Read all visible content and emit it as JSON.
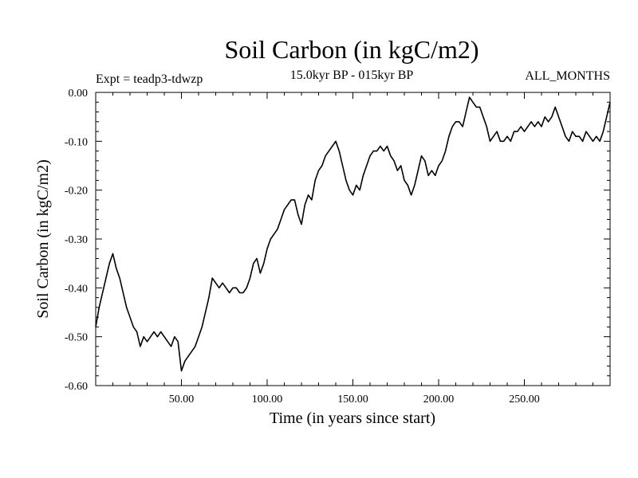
{
  "chart_data": {
    "type": "line",
    "title": "Soil Carbon (in kgC/m2)",
    "subtitle_left": "Expt = teadp3-tdwzp",
    "subtitle_center": "15.0kyr BP - 015kyr BP",
    "subtitle_right": "ALL_MONTHS",
    "xlabel": "Time (in years since start)",
    "ylabel": "Soil Carbon (in kgC/m2)",
    "xlim": [
      0,
      300
    ],
    "ylim": [
      -0.6,
      0.0
    ],
    "x_ticks": [
      50,
      100,
      150,
      200,
      250
    ],
    "x_tick_labels": [
      "50.00",
      "100.00",
      "150.00",
      "200.00",
      "250.00"
    ],
    "y_ticks": [
      0.0,
      -0.1,
      -0.2,
      -0.3,
      -0.4,
      -0.5,
      -0.6
    ],
    "y_tick_labels": [
      "0.00",
      "-0.10",
      "-0.20",
      "-0.30",
      "-0.40",
      "-0.50",
      "-0.60"
    ],
    "series": [
      {
        "name": "Soil Carbon",
        "color": "#000000",
        "x": [
          0,
          2,
          4,
          6,
          8,
          10,
          12,
          14,
          16,
          18,
          20,
          22,
          24,
          26,
          28,
          30,
          32,
          34,
          36,
          38,
          40,
          42,
          44,
          46,
          48,
          50,
          52,
          54,
          56,
          58,
          60,
          62,
          64,
          66,
          68,
          70,
          72,
          74,
          76,
          78,
          80,
          82,
          84,
          86,
          88,
          90,
          92,
          94,
          96,
          98,
          100,
          102,
          104,
          106,
          108,
          110,
          112,
          114,
          116,
          118,
          120,
          122,
          124,
          126,
          128,
          130,
          132,
          134,
          136,
          138,
          140,
          142,
          144,
          146,
          148,
          150,
          152,
          154,
          156,
          158,
          160,
          162,
          164,
          166,
          168,
          170,
          172,
          174,
          176,
          178,
          180,
          182,
          184,
          186,
          188,
          190,
          192,
          194,
          196,
          198,
          200,
          202,
          204,
          206,
          208,
          210,
          212,
          214,
          216,
          218,
          220,
          222,
          224,
          226,
          228,
          230,
          232,
          234,
          236,
          238,
          240,
          242,
          244,
          246,
          248,
          250,
          252,
          254,
          256,
          258,
          260,
          262,
          264,
          266,
          268,
          270,
          272,
          274,
          276,
          278,
          280,
          282,
          284,
          286,
          288,
          290,
          292,
          294,
          296,
          298,
          300
        ],
        "values": [
          -0.48,
          -0.44,
          -0.41,
          -0.38,
          -0.35,
          -0.33,
          -0.36,
          -0.38,
          -0.41,
          -0.44,
          -0.46,
          -0.48,
          -0.49,
          -0.52,
          -0.5,
          -0.51,
          -0.5,
          -0.49,
          -0.5,
          -0.49,
          -0.5,
          -0.51,
          -0.52,
          -0.5,
          -0.51,
          -0.57,
          -0.55,
          -0.54,
          -0.53,
          -0.52,
          -0.5,
          -0.48,
          -0.45,
          -0.42,
          -0.38,
          -0.39,
          -0.4,
          -0.39,
          -0.4,
          -0.41,
          -0.4,
          -0.4,
          -0.41,
          -0.41,
          -0.4,
          -0.38,
          -0.35,
          -0.34,
          -0.37,
          -0.35,
          -0.32,
          -0.3,
          -0.29,
          -0.28,
          -0.26,
          -0.24,
          -0.23,
          -0.22,
          -0.22,
          -0.25,
          -0.27,
          -0.23,
          -0.21,
          -0.22,
          -0.18,
          -0.16,
          -0.15,
          -0.13,
          -0.12,
          -0.11,
          -0.1,
          -0.12,
          -0.15,
          -0.18,
          -0.2,
          -0.21,
          -0.19,
          -0.2,
          -0.17,
          -0.15,
          -0.13,
          -0.12,
          -0.12,
          -0.11,
          -0.12,
          -0.11,
          -0.13,
          -0.14,
          -0.16,
          -0.15,
          -0.18,
          -0.19,
          -0.21,
          -0.19,
          -0.16,
          -0.13,
          -0.14,
          -0.17,
          -0.16,
          -0.17,
          -0.15,
          -0.14,
          -0.12,
          -0.09,
          -0.07,
          -0.06,
          -0.06,
          -0.07,
          -0.04,
          -0.01,
          -0.02,
          -0.03,
          -0.03,
          -0.05,
          -0.07,
          -0.1,
          -0.09,
          -0.08,
          -0.1,
          -0.1,
          -0.09,
          -0.1,
          -0.08,
          -0.08,
          -0.07,
          -0.08,
          -0.07,
          -0.06,
          -0.07,
          -0.06,
          -0.07,
          -0.05,
          -0.06,
          -0.05,
          -0.03,
          -0.05,
          -0.07,
          -0.09,
          -0.1,
          -0.08,
          -0.09,
          -0.09,
          -0.1,
          -0.08,
          -0.09,
          -0.1,
          -0.09,
          -0.1,
          -0.08,
          -0.05,
          -0.02
        ]
      }
    ]
  }
}
